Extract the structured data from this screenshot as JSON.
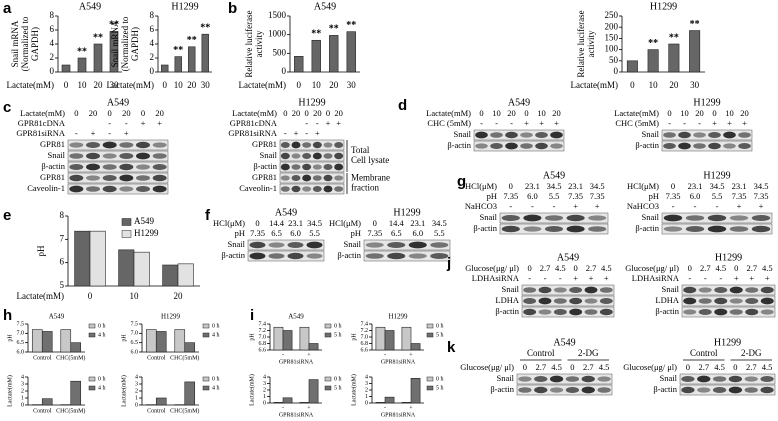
{
  "chart_data": [
    {
      "type": "bar",
      "panel": "a",
      "title": "A549",
      "y_label": [
        "Snail mRNA",
        "(Normalized to",
        "GAPDH)"
      ],
      "x_label": "Lactate(mM)",
      "categories": [
        "0",
        "10",
        "20",
        "30"
      ],
      "values": [
        1,
        2,
        4,
        5.8
      ],
      "annotations": [
        null,
        "**",
        "**",
        "**"
      ],
      "color": "#666666",
      "ylim": [
        0,
        8
      ],
      "yticks": [
        0,
        2,
        4,
        6,
        8
      ]
    },
    {
      "type": "bar",
      "title": "H1299",
      "y_label": [
        "Snail mRNA",
        "(Normalized to",
        "GAPDH)"
      ],
      "x_label": "Lactate(mM)",
      "categories": [
        "0",
        "10",
        "20",
        "30"
      ],
      "values": [
        1,
        2.2,
        3.6,
        5.4
      ],
      "annotations": [
        null,
        "**",
        "**",
        "**"
      ],
      "color": "#666666",
      "ylim": [
        0,
        8
      ],
      "yticks": [
        0,
        2,
        4,
        6,
        8
      ]
    },
    {
      "type": "bar",
      "panel": "b",
      "title": "A549",
      "y_label": [
        "Relative luciferase",
        "activity"
      ],
      "x_label": "Lactate(mM)",
      "categories": [
        "0",
        "10",
        "20",
        "30"
      ],
      "values": [
        420,
        850,
        980,
        1080
      ],
      "annotations": [
        null,
        "**",
        "**",
        "**"
      ],
      "color": "#666666",
      "ylim": [
        0,
        1500
      ],
      "yticks": [
        0,
        500,
        1000,
        1500
      ]
    },
    {
      "type": "bar",
      "title": "H1299",
      "y_label": [
        "Relative luciferase",
        "activity"
      ],
      "x_label": "Lactate(mM)",
      "categories": [
        "0",
        "10",
        "20",
        "30"
      ],
      "values": [
        50,
        100,
        125,
        185
      ],
      "annotations": [
        null,
        "**",
        "**",
        "**"
      ],
      "color": "#666666",
      "ylim": [
        0,
        250
      ],
      "yticks": [
        0,
        50,
        100,
        150,
        200,
        250
      ]
    },
    {
      "type": "bar",
      "panel": "e",
      "y_label": [
        "pH"
      ],
      "x_label": "Lactate(mM)",
      "categories": [
        "0",
        "10",
        "20"
      ],
      "series": [
        {
          "name": "A549",
          "color": "#666666",
          "values": [
            7.35,
            6.55,
            5.9
          ]
        },
        {
          "name": "H1299",
          "color": "#e2e2e2",
          "values": [
            7.35,
            6.45,
            5.95
          ]
        }
      ],
      "ylim": [
        5,
        8
      ],
      "yticks": [
        5,
        6,
        7,
        8
      ]
    },
    {
      "type": "bar",
      "panel": "h",
      "title": "A549",
      "y_label": [
        "pH"
      ],
      "categories": [
        "Control",
        "CHC(5mM)"
      ],
      "series": [
        {
          "name": "0 h",
          "color": "#c8c8c8",
          "values": [
            7.2,
            7.2
          ]
        },
        {
          "name": "4 h",
          "color": "#707070",
          "values": [
            7.1,
            6.5
          ]
        }
      ],
      "ylim": [
        6.0,
        7.5
      ],
      "yticks": [
        {
          "value": 6,
          "label": "6.0"
        },
        6.5,
        {
          "value": 7,
          "label": "7.0"
        },
        7.5
      ]
    },
    {
      "type": "bar",
      "y_label": [
        "Lactate(mM)"
      ],
      "categories": [
        "Control",
        "CHC(5mM)"
      ],
      "series": [
        {
          "name": "0 h",
          "color": "#c8c8c8",
          "values": [
            0.05,
            0.05
          ]
        },
        {
          "name": "4 h",
          "color": "#707070",
          "values": [
            0.9,
            3.4
          ]
        }
      ],
      "ylim": [
        0,
        4
      ],
      "yticks": [
        0,
        1,
        2,
        3,
        4
      ]
    },
    {
      "type": "bar",
      "title": "H1299",
      "y_label": [
        "pH"
      ],
      "categories": [
        "Control",
        "CHC(5mM)"
      ],
      "series": [
        {
          "name": "0 h",
          "color": "#c8c8c8",
          "values": [
            7.2,
            7.2
          ]
        },
        {
          "name": "4 h",
          "color": "#707070",
          "values": [
            7.1,
            6.5
          ]
        }
      ],
      "ylim": [
        6.0,
        7.5
      ],
      "yticks": [
        {
          "value": 6,
          "label": "6.0"
        },
        6.5,
        {
          "value": 7,
          "label": "7.0"
        },
        7.5
      ]
    },
    {
      "type": "bar",
      "y_label": [
        "Lactate(mM)"
      ],
      "categories": [
        "Control",
        "CHC(5mM)"
      ],
      "series": [
        {
          "name": "0 h",
          "color": "#c8c8c8",
          "values": [
            0.05,
            0.05
          ]
        },
        {
          "name": "4 h",
          "color": "#707070",
          "values": [
            1.0,
            3.3
          ]
        }
      ],
      "ylim": [
        0,
        4
      ],
      "yticks": [
        0,
        1,
        2,
        3,
        4
      ]
    },
    {
      "type": "bar",
      "panel": "i",
      "title": "A549",
      "y_label": [
        "pH"
      ],
      "x_label": "GPR81siRNA",
      "categories": [
        "-",
        "+"
      ],
      "series": [
        {
          "name": "0 h",
          "color": "#c8c8c8",
          "values": [
            7.3,
            7.3
          ]
        },
        {
          "name": "5 h",
          "color": "#707070",
          "values": [
            7.2,
            6.8
          ]
        }
      ],
      "ylim": [
        6.6,
        7.4
      ],
      "yticks": [
        6.6,
        6.8,
        {
          "value": 7,
          "label": "7.0"
        },
        7.2,
        7.4
      ]
    },
    {
      "type": "bar",
      "y_label": [
        "Lactate(mM)"
      ],
      "x_label": "GPR81siRNA",
      "categories": [
        "-",
        "+"
      ],
      "series": [
        {
          "name": "0 h",
          "color": "#c8c8c8",
          "values": [
            0.1,
            0.1
          ]
        },
        {
          "name": "5 h",
          "color": "#707070",
          "values": [
            0.8,
            3.6
          ]
        }
      ],
      "ylim": [
        0,
        4
      ],
      "yticks": [
        0,
        1,
        2,
        3,
        4
      ]
    },
    {
      "type": "bar",
      "title": "H1299",
      "y_label": [
        "pH"
      ],
      "x_label": "GPR81siRNA",
      "categories": [
        "-",
        "+"
      ],
      "series": [
        {
          "name": "0 h",
          "color": "#c8c8c8",
          "values": [
            7.3,
            7.3
          ]
        },
        {
          "name": "5 h",
          "color": "#707070",
          "values": [
            7.2,
            6.8
          ]
        }
      ],
      "ylim": [
        6.6,
        7.4
      ],
      "yticks": [
        6.6,
        6.8,
        {
          "value": 7,
          "label": "7.0"
        },
        7.2,
        7.4
      ]
    },
    {
      "type": "bar",
      "y_label": [
        "Lactate(mM)"
      ],
      "x_label": "GPR81siRNA",
      "categories": [
        "-",
        "+"
      ],
      "series": [
        {
          "name": "0 h",
          "color": "#c8c8c8",
          "values": [
            0.1,
            0.1
          ]
        },
        {
          "name": "5 h",
          "color": "#707070",
          "values": [
            0.9,
            3.8
          ]
        }
      ],
      "ylim": [
        0,
        4
      ],
      "yticks": [
        0,
        1,
        2,
        3,
        4
      ]
    }
  ],
  "blots": [
    {
      "panel": "c",
      "title": "A549",
      "headers": [
        {
          "label": "Lactate(mM)",
          "cells": [
            "0",
            "20",
            "0",
            "20",
            "0",
            "20"
          ]
        },
        {
          "label": "GPR81cDNA",
          "cells": [
            null,
            null,
            "-",
            "-",
            "+",
            "+"
          ]
        },
        {
          "label": "GPR81siRNA",
          "cells": [
            "-",
            "+",
            "-",
            "+",
            null,
            null
          ]
        }
      ],
      "bands": [
        "GPR81",
        "Snail",
        "β-actin",
        "GPR81",
        "Caveolin-1"
      ]
    },
    {
      "title": "H1299",
      "headers": [
        {
          "label": "Lactate(mM)",
          "cells": [
            "0",
            "20",
            "0",
            "20",
            "0",
            "20"
          ]
        },
        {
          "label": "GPR81cDNA",
          "cells": [
            null,
            null,
            "-",
            "-",
            "+",
            "+"
          ]
        },
        {
          "label": "GPR81siRNA",
          "cells": [
            "-",
            "+",
            "-",
            "+",
            null,
            null
          ]
        }
      ],
      "bands": [
        "GPR81",
        "Snail",
        "β-actin",
        "GPR81",
        "Caveolin-1"
      ],
      "side": [
        [
          "Total",
          "Cell lysate"
        ],
        [
          "Membrane",
          "fraction"
        ]
      ]
    },
    {
      "panel": "d",
      "title": "A549",
      "headers": [
        {
          "label": "Lactate(mM)",
          "cells": [
            "0",
            "10",
            "20",
            "0",
            "10",
            "20"
          ]
        },
        {
          "label": "CHC (5mM)",
          "cells": [
            "-",
            "-",
            "-",
            "+",
            "+",
            "+"
          ]
        }
      ],
      "bands": [
        "Snail",
        "β-actin"
      ]
    },
    {
      "title": "H1299",
      "headers": [
        {
          "label": "Lactate(mM)",
          "cells": [
            "0",
            "10",
            "20",
            "0",
            "10",
            "20"
          ]
        },
        {
          "label": "CHC (5mM)",
          "cells": [
            "-",
            "-",
            "-",
            "+",
            "+",
            "+"
          ]
        }
      ],
      "bands": [
        "Snail",
        "β-actin"
      ]
    },
    {
      "panel": "f",
      "title": "A549",
      "headers": [
        {
          "label": "HCl(μM)",
          "cells": [
            "0",
            "14.4",
            "23.1",
            "34.5"
          ]
        },
        {
          "label": "pH",
          "cells": [
            "7.35",
            "6.5",
            "6.0",
            "5.5"
          ]
        }
      ],
      "bands": [
        "Snail",
        "β-actin"
      ]
    },
    {
      "title": "H1299",
      "headers": [
        {
          "label": "HCl(μM)",
          "cells": [
            "0",
            "14.4",
            "23.1",
            "34.5"
          ]
        },
        {
          "label": "pH",
          "cells": [
            "7.35",
            "6.5",
            "6.0",
            "5.5"
          ]
        }
      ],
      "bands": [
        "Snail",
        "β-actin"
      ]
    },
    {
      "panel": "g",
      "title": "A549",
      "headers": [
        {
          "label": "HCl(μM)",
          "cells": [
            "0",
            "23.1",
            "34.5",
            "23.1",
            "34.5"
          ]
        },
        {
          "label": "pH",
          "cells": [
            "7.35",
            "6.0",
            "5.5",
            "7.35",
            "7.35"
          ]
        },
        {
          "label": "NaHCO3",
          "cells": [
            "-",
            "-",
            "-",
            "+",
            "+"
          ]
        }
      ],
      "bands": [
        "Snail",
        "β-actin"
      ]
    },
    {
      "title": "H1299",
      "headers": [
        {
          "label": "HCl(μM)",
          "cells": [
            "0",
            "23.1",
            "34.5",
            "23.1",
            "34.5"
          ]
        },
        {
          "label": "pH",
          "cells": [
            "7.35",
            "6.0",
            "5.5",
            "7.35",
            "7.35"
          ]
        },
        {
          "label": "NaHCO3",
          "cells": [
            "-",
            "-",
            "-",
            "+",
            "+"
          ]
        }
      ],
      "bands": [
        "Snail",
        "β-actin"
      ]
    },
    {
      "panel": "j",
      "title": "A549",
      "headers": [
        {
          "label": "Glucose(μg/ μl)",
          "cells": [
            "0",
            "2.7",
            "4.5",
            "0",
            "2.7",
            "4.5"
          ]
        },
        {
          "label": "LDHAsiRNA",
          "cells": [
            "-",
            "-",
            "-",
            "+",
            "+",
            "+"
          ]
        }
      ],
      "bands": [
        "Snail",
        "LDHA",
        "β-actin"
      ]
    },
    {
      "title": "H1299",
      "headers": [
        {
          "label": "Glucose(μg/ μl)",
          "cells": [
            "0",
            "2.7",
            "4.5",
            "0",
            "2.7",
            "4.5"
          ]
        },
        {
          "label": "LDHAsiRNA",
          "cells": [
            "-",
            "-",
            "-",
            "+",
            "+",
            "+"
          ]
        }
      ],
      "bands": [
        "Snail",
        "LDHA",
        "β-actin"
      ]
    },
    {
      "panel": "k",
      "title": "A549",
      "groups": [
        "Control",
        "2-DG"
      ],
      "headers": [
        {
          "label": "Glucose(μg/ μl)",
          "cells": [
            "0",
            "2.7",
            "4.5",
            "0",
            "2.7",
            "4.5"
          ]
        }
      ],
      "bands": [
        "Snail",
        "β-actin"
      ]
    },
    {
      "title": "H1299",
      "groups": [
        "Control",
        "2-DG"
      ],
      "headers": [
        {
          "label": "Glucose(μg/ μl)",
          "cells": [
            "0",
            "2.7",
            "4.5",
            "0",
            "2.7",
            "4.5"
          ]
        }
      ],
      "bands": [
        "Snail",
        "β-actin"
      ]
    }
  ]
}
